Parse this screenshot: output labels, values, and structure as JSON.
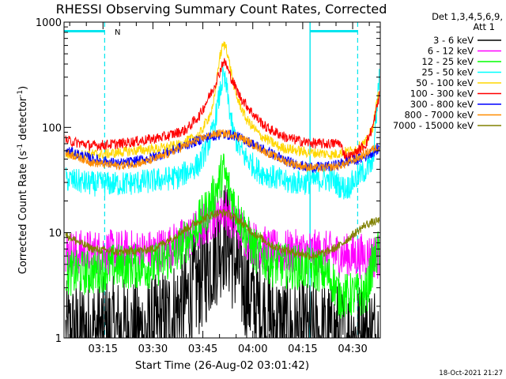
{
  "chart_data": {
    "type": "line",
    "title": "RHESSI Observing Summary Count Rates, Corrected",
    "xlabel": "Start Time (26-Aug-02 03:01:42)",
    "ylabel": "Corrected Count Rate (s⁻¹ detector⁻¹)",
    "ylabel_parts": {
      "main": "Corrected Count Rate (s",
      "sup1": "-1",
      "mid": " detector",
      "sup2": "-1",
      "end": ")"
    },
    "y_scale": "log",
    "ylim": [
      1,
      1000
    ],
    "xlim_minutes": [
      3.3,
      98.3
    ],
    "x_ticks": [
      {
        "label": "03:15",
        "m": 15
      },
      {
        "label": "03:30",
        "m": 30
      },
      {
        "label": "03:45",
        "m": 45
      },
      {
        "label": "04:00",
        "m": 60
      },
      {
        "label": "04:15",
        "m": 75
      },
      {
        "label": "04:30",
        "m": 90
      }
    ],
    "y_ticks": [
      {
        "label": "1000",
        "v": 1000
      },
      {
        "label": "100",
        "v": 100
      },
      {
        "label": "10",
        "v": 10
      },
      {
        "label": "1",
        "v": 1
      }
    ],
    "legend_header": [
      "Det 1,3,4,5,6,9,",
      "Att 1"
    ],
    "legend_position": "right",
    "attenuator_flag": {
      "label": "N",
      "color": "#00e5ee"
    },
    "markers": {
      "color": "#00e5ee",
      "dashed_lines": [
        15.5,
        91.5
      ],
      "solid_lines": [
        77.2
      ],
      "bars": [
        [
          3.3,
          15.5
        ],
        [
          77.2,
          91.5
        ]
      ],
      "bar_level": 820
    },
    "timestamp": "18-Oct-2021 21:27",
    "series": [
      {
        "name": "3 - 6 keV",
        "color": "#000000",
        "noise": 0.55,
        "points": [
          [
            4,
            1
          ],
          [
            12,
            1.1
          ],
          [
            30,
            1.1
          ],
          [
            36,
            1.6
          ],
          [
            40,
            2.2
          ],
          [
            44,
            3.6
          ],
          [
            48,
            6
          ],
          [
            51,
            9
          ],
          [
            52,
            9.5
          ],
          [
            54,
            6
          ],
          [
            57,
            3.5
          ],
          [
            60,
            2.2
          ],
          [
            64,
            1.5
          ],
          [
            70,
            1.1
          ],
          [
            76,
            1
          ],
          [
            98,
            1
          ]
        ]
      },
      {
        "name": "6 - 12 keV",
        "color": "#ff00ff",
        "noise": 0.22,
        "points": [
          [
            4,
            6.5
          ],
          [
            30,
            6.5
          ],
          [
            36,
            7.5
          ],
          [
            42,
            9.5
          ],
          [
            48,
            14
          ],
          [
            51,
            17
          ],
          [
            52,
            16
          ],
          [
            56,
            11
          ],
          [
            60,
            8
          ],
          [
            66,
            6.5
          ],
          [
            76,
            6.5
          ],
          [
            80,
            6.5
          ],
          [
            88,
            6
          ],
          [
            92,
            6
          ],
          [
            98,
            6
          ]
        ]
      },
      {
        "name": "12 - 25 keV",
        "color": "#00ff00",
        "noise": 0.22,
        "points": [
          [
            4,
            4.1
          ],
          [
            12,
            4.2
          ],
          [
            18,
            4.8
          ],
          [
            30,
            4.8
          ],
          [
            36,
            6
          ],
          [
            42,
            10
          ],
          [
            47,
            18
          ],
          [
            50,
            30
          ],
          [
            51,
            40
          ],
          [
            53,
            25
          ],
          [
            56,
            14
          ],
          [
            60,
            7
          ],
          [
            66,
            5
          ],
          [
            76,
            4.6
          ],
          [
            80,
            4.5
          ],
          [
            84,
            3.5
          ],
          [
            86,
            2.5
          ],
          [
            94,
            2.6
          ],
          [
            96,
            5
          ],
          [
            98,
            7
          ]
        ]
      },
      {
        "name": "25 - 50 keV",
        "color": "#00ffff",
        "noise": 0.12,
        "points": [
          [
            4,
            32
          ],
          [
            12,
            29
          ],
          [
            20,
            29
          ],
          [
            30,
            31
          ],
          [
            38,
            34
          ],
          [
            44,
            45
          ],
          [
            48,
            90
          ],
          [
            50,
            200
          ],
          [
            51,
            300
          ],
          [
            52,
            250
          ],
          [
            54,
            90
          ],
          [
            57,
            55
          ],
          [
            62,
            38
          ],
          [
            70,
            30
          ],
          [
            76,
            30
          ],
          [
            80,
            32
          ],
          [
            84,
            32
          ],
          [
            86,
            28
          ],
          [
            88,
            26
          ],
          [
            92,
            35
          ],
          [
            96,
            45
          ],
          [
            98,
            300
          ]
        ]
      },
      {
        "name": "50 - 100 keV",
        "color": "#ffd700",
        "noise": 0.05,
        "points": [
          [
            4,
            56
          ],
          [
            8,
            55
          ],
          [
            16,
            56
          ],
          [
            24,
            60
          ],
          [
            32,
            63
          ],
          [
            38,
            68
          ],
          [
            44,
            85
          ],
          [
            48,
            150
          ],
          [
            50,
            450
          ],
          [
            51,
            600
          ],
          [
            52,
            600
          ],
          [
            53,
            400
          ],
          [
            55,
            200
          ],
          [
            58,
            120
          ],
          [
            62,
            85
          ],
          [
            68,
            65
          ],
          [
            76,
            58
          ],
          [
            80,
            57
          ],
          [
            84,
            55
          ],
          [
            87,
            58
          ],
          [
            90,
            60
          ],
          [
            94,
            72
          ],
          [
            96,
            100
          ],
          [
            98,
            230
          ]
        ]
      },
      {
        "name": "100 - 300 keV",
        "color": "#ff0000",
        "noise": 0.05,
        "points": [
          [
            4,
            75
          ],
          [
            12,
            67
          ],
          [
            20,
            70
          ],
          [
            28,
            76
          ],
          [
            34,
            82
          ],
          [
            40,
            95
          ],
          [
            44,
            130
          ],
          [
            48,
            230
          ],
          [
            50,
            330
          ],
          [
            51,
            420
          ],
          [
            52,
            400
          ],
          [
            53,
            320
          ],
          [
            56,
            200
          ],
          [
            60,
            135
          ],
          [
            64,
            100
          ],
          [
            70,
            80
          ],
          [
            76,
            72
          ],
          [
            80,
            70
          ],
          [
            84,
            70
          ],
          [
            86,
            72
          ],
          [
            88,
            52
          ],
          [
            90,
            54
          ],
          [
            94,
            70
          ],
          [
            96,
            100
          ],
          [
            98,
            200
          ]
        ]
      },
      {
        "name": "300 - 800 keV",
        "color": "#0000ff",
        "noise": 0.05,
        "points": [
          [
            4,
            60
          ],
          [
            12,
            50
          ],
          [
            20,
            45
          ],
          [
            28,
            50
          ],
          [
            34,
            57
          ],
          [
            40,
            68
          ],
          [
            46,
            80
          ],
          [
            50,
            85
          ],
          [
            54,
            85
          ],
          [
            58,
            75
          ],
          [
            64,
            60
          ],
          [
            70,
            48
          ],
          [
            76,
            42
          ],
          [
            80,
            42
          ],
          [
            84,
            43
          ],
          [
            88,
            47
          ],
          [
            92,
            50
          ],
          [
            96,
            58
          ],
          [
            98,
            63
          ]
        ]
      },
      {
        "name": "800 - 7000 keV",
        "color": "#ff8c00",
        "noise": 0.04,
        "points": [
          [
            4,
            57
          ],
          [
            12,
            46
          ],
          [
            20,
            43
          ],
          [
            28,
            47
          ],
          [
            34,
            55
          ],
          [
            40,
            68
          ],
          [
            46,
            82
          ],
          [
            50,
            88
          ],
          [
            54,
            86
          ],
          [
            58,
            75
          ],
          [
            64,
            58
          ],
          [
            70,
            47
          ],
          [
            76,
            42
          ],
          [
            80,
            41
          ],
          [
            84,
            42
          ],
          [
            88,
            45
          ],
          [
            92,
            52
          ],
          [
            96,
            62
          ],
          [
            98,
            66
          ]
        ]
      },
      {
        "name": "7000 - 15000 keV",
        "color": "#808000",
        "noise": 0.04,
        "points": [
          [
            4,
            9.5
          ],
          [
            8,
            8
          ],
          [
            12,
            7
          ],
          [
            20,
            6.5
          ],
          [
            30,
            7
          ],
          [
            36,
            9
          ],
          [
            42,
            12
          ],
          [
            48,
            15
          ],
          [
            52,
            15.5
          ],
          [
            56,
            13
          ],
          [
            60,
            10
          ],
          [
            66,
            7.5
          ],
          [
            72,
            6.5
          ],
          [
            78,
            6
          ],
          [
            82,
            6.5
          ],
          [
            86,
            7.5
          ],
          [
            90,
            9.5
          ],
          [
            94,
            12
          ],
          [
            98,
            13
          ]
        ]
      }
    ]
  }
}
